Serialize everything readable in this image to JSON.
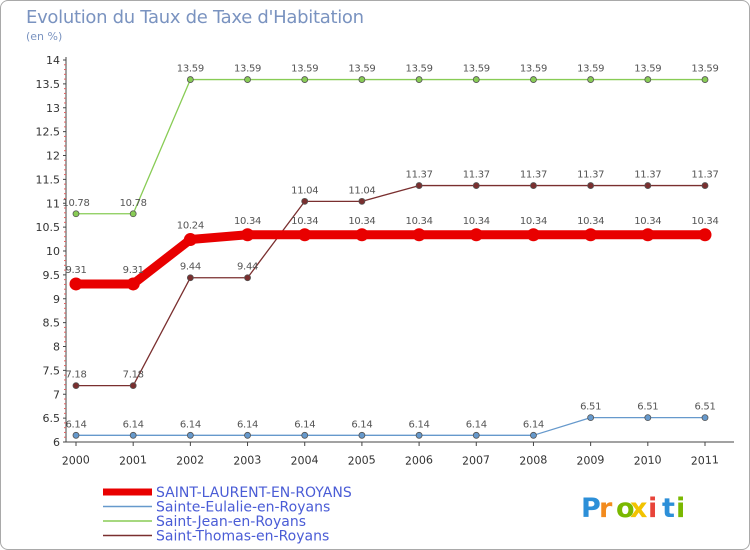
{
  "header": {
    "title": "Evolution du Taux de Taxe d'Habitation",
    "subtitle": "(en %)"
  },
  "brand": {
    "letters": [
      "P",
      "r",
      "o",
      "x",
      "i",
      "t",
      "i"
    ],
    "colors": [
      "#2c8fd8",
      "#f28b1e",
      "#7ab800",
      "#f2c300",
      "#e8443a",
      "#2c8fd8",
      "#7ab800"
    ]
  },
  "chart_data": {
    "type": "line",
    "title": "Evolution du Taux de Taxe d'Habitation",
    "subtitle": "(en %)",
    "xlabel": "",
    "ylabel": "",
    "x": [
      "2000",
      "2001",
      "2002",
      "2003",
      "2004",
      "2005",
      "2006",
      "2007",
      "2008",
      "2009",
      "2010",
      "2011"
    ],
    "ylim": [
      6,
      14
    ],
    "yticks": [
      "6",
      "6.5",
      "7",
      "7.5",
      "8",
      "8.5",
      "9",
      "9.5",
      "10",
      "10.5",
      "11",
      "11.5",
      "12",
      "12.5",
      "13",
      "13.5",
      "14"
    ],
    "legend_position": "bottom-left",
    "series": [
      {
        "name": "SAINT-LAURENT-EN-ROYANS",
        "color": "#e80000",
        "values": [
          9.31,
          9.31,
          10.24,
          10.34,
          10.34,
          10.34,
          10.34,
          10.34,
          10.34,
          10.34,
          10.34,
          10.34
        ],
        "labels": [
          "9.31",
          "9.31",
          "10.24",
          "10.34",
          "10.34",
          "10.34",
          "10.34",
          "10.34",
          "10.34",
          "10.34",
          "10.34",
          "10.34"
        ]
      },
      {
        "name": "Sainte-Eulalie-en-Royans",
        "color": "#6699cc",
        "values": [
          6.14,
          6.14,
          6.14,
          6.14,
          6.14,
          6.14,
          6.14,
          6.14,
          6.14,
          6.51,
          6.51,
          6.51
        ],
        "labels": [
          "6.14",
          "6.14",
          "6.14",
          "6.14",
          "6.14",
          "6.14",
          "6.14",
          "6.14",
          "6.14",
          "6.51",
          "6.51",
          "6.51"
        ]
      },
      {
        "name": "Saint-Jean-en-Royans",
        "color": "#88cc55",
        "values": [
          10.78,
          10.78,
          13.59,
          13.59,
          13.59,
          13.59,
          13.59,
          13.59,
          13.59,
          13.59,
          13.59,
          13.59
        ],
        "labels": [
          "10.78",
          "10.78",
          "13.59",
          "13.59",
          "13.59",
          "13.59",
          "13.59",
          "13.59",
          "13.59",
          "13.59",
          "13.59",
          "13.59"
        ]
      },
      {
        "name": "Saint-Thomas-en-Royans",
        "color": "#7a2f2f",
        "values": [
          7.18,
          7.18,
          9.44,
          9.44,
          11.04,
          11.04,
          11.37,
          11.37,
          11.37,
          11.37,
          11.37,
          11.37
        ],
        "labels": [
          "7.18",
          "7.18",
          "9.44",
          "9.44",
          "11.04",
          "11.04",
          "11.37",
          "11.37",
          "11.37",
          "11.37",
          "11.37",
          "11.37"
        ]
      }
    ]
  }
}
